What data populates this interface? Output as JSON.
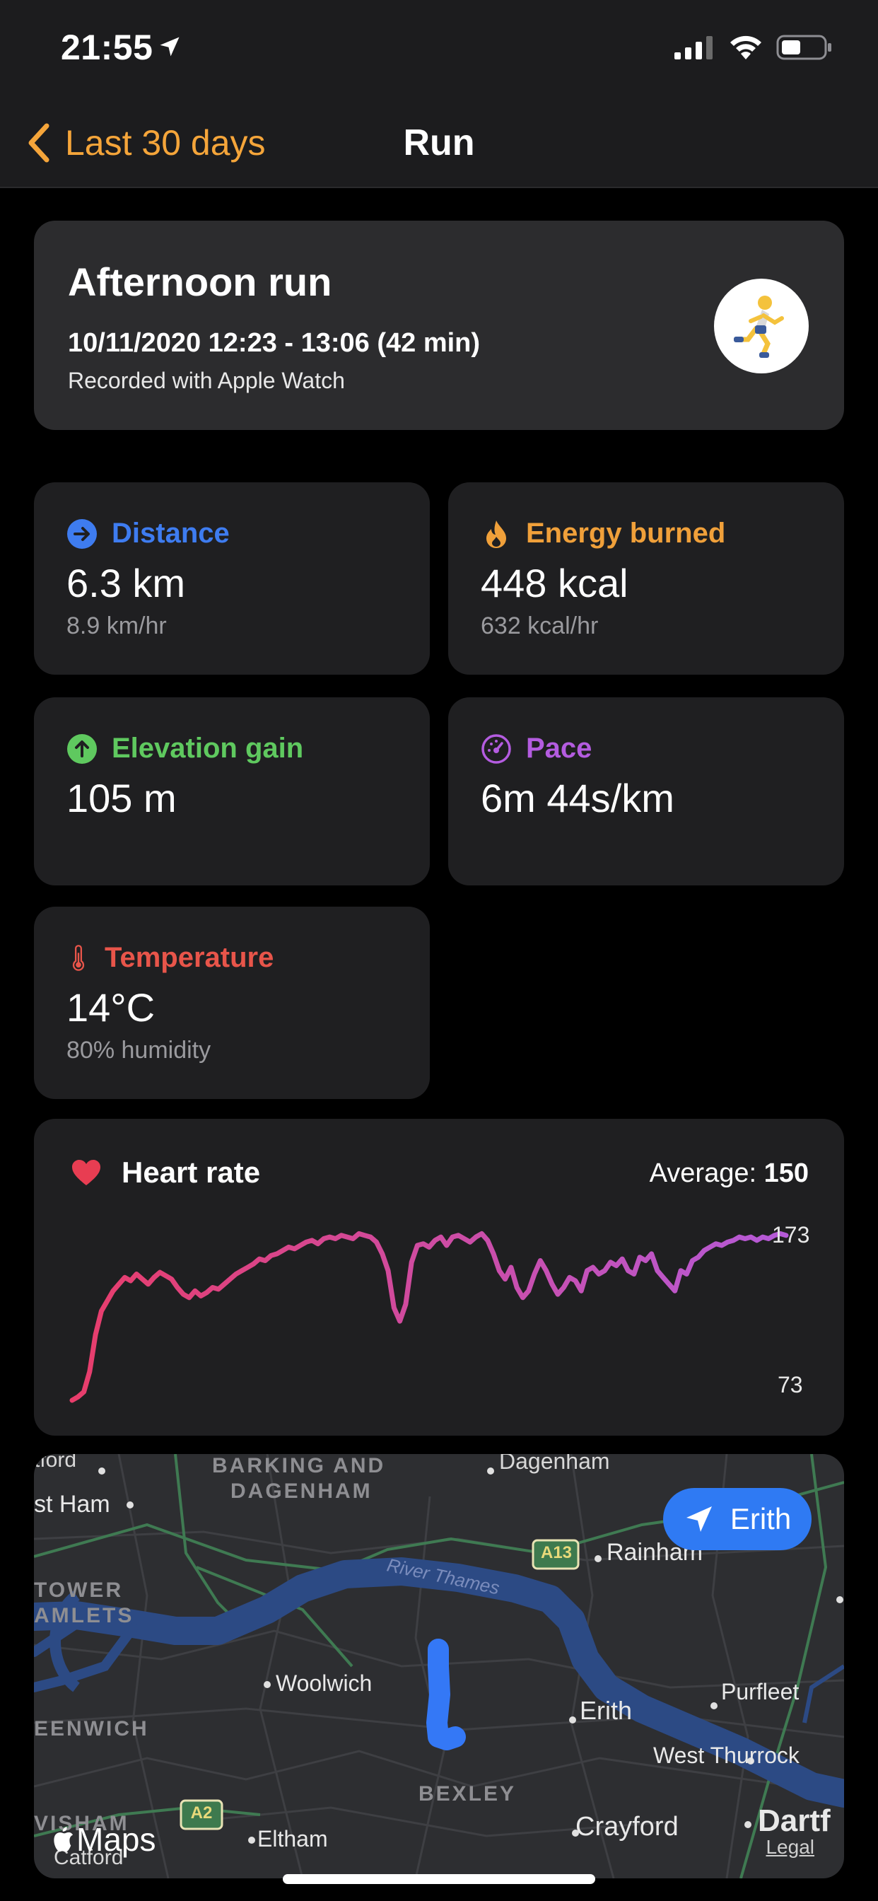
{
  "status_bar": {
    "time": "21:55"
  },
  "nav": {
    "back_label": "Last 30 days",
    "title": "Run"
  },
  "summary": {
    "title": "Afternoon run",
    "datetime": "10/11/2020 12:23 - 13:06 (42 min)",
    "recorded": "Recorded with Apple Watch",
    "badge_emoji": "🏃"
  },
  "stats": {
    "distance": {
      "label": "Distance",
      "value": "6.3 km",
      "sub": "8.9 km/hr",
      "color": "#3e7cf0",
      "icon": "arrow-right-circle-icon"
    },
    "energy": {
      "label": "Energy burned",
      "value": "448 kcal",
      "sub": "632 kcal/hr",
      "color": "#f0a03a",
      "icon": "flame-icon"
    },
    "elevation": {
      "label": "Elevation gain",
      "value": "105 m",
      "color": "#5fc95f",
      "icon": "arrow-up-circle-icon"
    },
    "pace": {
      "label": "Pace",
      "value": "6m 44s/km",
      "color": "#b45ce0",
      "icon": "speedometer-icon"
    },
    "temperature": {
      "label": "Temperature",
      "value": "14°C",
      "sub": "80% humidity",
      "color": "#e8554a",
      "icon": "thermometer-icon"
    }
  },
  "heart_rate": {
    "label": "Heart rate",
    "average_label": "Average:",
    "average_value": "150",
    "max_tick": "173",
    "min_tick": "73"
  },
  "chart_data": {
    "type": "line",
    "title": "Heart rate",
    "ylim": [
      73,
      173
    ],
    "gradient": [
      "#e83d6b",
      "#b55ad8"
    ],
    "series": [
      {
        "values": [
          73,
          75,
          78,
          90,
          112,
          126,
          132,
          138,
          142,
          146,
          144,
          148,
          145,
          142,
          146,
          149,
          147,
          145,
          140,
          136,
          134,
          138,
          135,
          137,
          140,
          139,
          142,
          145,
          148,
          150,
          152,
          154,
          157,
          156,
          159,
          160,
          162,
          164,
          163,
          165,
          167,
          168,
          166,
          169,
          170,
          169,
          171,
          170,
          169,
          172,
          171,
          170,
          167,
          160,
          150,
          128,
          120,
          130,
          155,
          165,
          166,
          164,
          168,
          170,
          165,
          170,
          171,
          169,
          167,
          170,
          172,
          168,
          160,
          150,
          145,
          152,
          140,
          134,
          138,
          148,
          156,
          150,
          142,
          136,
          140,
          146,
          144,
          138,
          150,
          152,
          148,
          150,
          155,
          153,
          157,
          150,
          148,
          158,
          156,
          160,
          150,
          146,
          142,
          138,
          150,
          148,
          156,
          158,
          162,
          164,
          166,
          165,
          167,
          168,
          170,
          169,
          170,
          168,
          170,
          169,
          171,
          172,
          171
        ]
      }
    ]
  },
  "map": {
    "button_label": "Erith",
    "maps_label": "Maps",
    "legal_label": "Legal",
    "places": {
      "stratford": "tford",
      "barking": "BARKING AND",
      "dagenham_area": "DAGENHAM",
      "dagenham": "Dagenham",
      "east_ham": "st Ham",
      "tower": "TOWER",
      "hamlets": "AMLETS",
      "rainham": "Rainham",
      "river": "River Thames",
      "woolwich": "Woolwich",
      "erith": "Erith",
      "purfleet": "Purfleet",
      "greenwich": "EENWICH",
      "west_thurrock": "West Thurrock",
      "bexley": "BEXLEY",
      "lewisham": "VISHAM",
      "catford": "Catford",
      "eltham": "Eltham",
      "crayford": "Crayford",
      "dartford": "Dartf",
      "a13": "A13",
      "a2": "A2"
    }
  }
}
